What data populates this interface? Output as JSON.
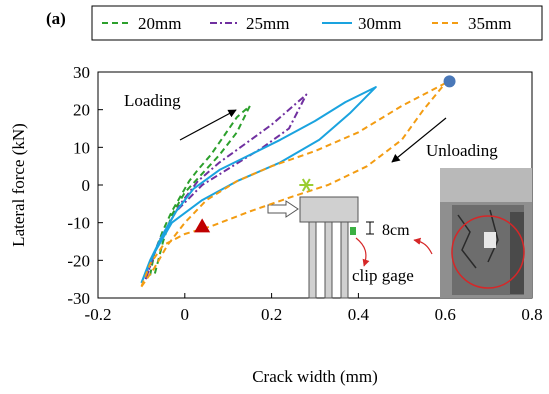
{
  "chart_data": {
    "type": "line",
    "panel_label": "(a)",
    "xlabel": "Crack width (mm)",
    "ylabel": "Lateral force (kN)",
    "xlim": [
      -0.2,
      0.8
    ],
    "ylim": [
      -30,
      30
    ],
    "xticks": [
      -0.2,
      0,
      0.2,
      0.4,
      0.6,
      0.8
    ],
    "xtick_labels": [
      "-0.2",
      "0",
      "0.2",
      "0.4",
      "0.6",
      "0.8"
    ],
    "yticks": [
      -30,
      -20,
      -10,
      0,
      10,
      20,
      30
    ],
    "ytick_labels": [
      "-30",
      "-20",
      "-10",
      "0",
      "10",
      "20",
      "30"
    ],
    "grid": false,
    "legend_position": "top",
    "series": [
      {
        "name": "20mm",
        "color": "#2ca02c",
        "dash": "dashed",
        "x": [
          -0.08,
          -0.07,
          -0.05,
          -0.03,
          -0.01,
          0.01,
          0.03,
          0.06,
          0.09,
          0.12,
          0.15,
          0.12,
          0.08,
          0.04,
          0.0,
          -0.03,
          -0.05,
          -0.07
        ],
        "y": [
          -24,
          -18,
          -12,
          -7,
          -3,
          1,
          4,
          8,
          13,
          18,
          21,
          14,
          8,
          3,
          -2,
          -8,
          -15,
          -24
        ]
      },
      {
        "name": "25mm",
        "color": "#7030a0",
        "dash": "dashdot",
        "x": [
          -0.09,
          -0.07,
          -0.04,
          -0.01,
          0.03,
          0.08,
          0.14,
          0.2,
          0.25,
          0.28,
          0.24,
          0.18,
          0.11,
          0.04,
          -0.02,
          -0.06,
          -0.09
        ],
        "y": [
          -25,
          -18,
          -11,
          -5,
          1,
          6,
          11,
          16,
          21,
          24,
          15,
          10,
          5,
          0,
          -7,
          -15,
          -25
        ]
      },
      {
        "name": "30mm",
        "color": "#1aa3df",
        "dash": "solid",
        "x": [
          -0.1,
          -0.08,
          -0.05,
          -0.02,
          0.02,
          0.08,
          0.15,
          0.22,
          0.3,
          0.37,
          0.44,
          0.38,
          0.31,
          0.22,
          0.12,
          0.04,
          -0.03,
          -0.07,
          -0.1
        ],
        "y": [
          -26,
          -20,
          -13,
          -7,
          -1,
          4,
          8,
          12,
          17,
          22,
          26,
          19,
          12,
          6,
          1,
          -4,
          -10,
          -18,
          -26
        ]
      },
      {
        "name": "35mm",
        "color": "#f39c12",
        "dash": "dashed",
        "x": [
          -0.1,
          -0.07,
          -0.04,
          0.0,
          0.05,
          0.12,
          0.2,
          0.3,
          0.4,
          0.5,
          0.6,
          0.55,
          0.5,
          0.42,
          0.33,
          0.25,
          0.15,
          0.06,
          0.0,
          -0.05,
          -0.08,
          -0.1
        ],
        "y": [
          -27,
          -22,
          -16,
          -10,
          -4,
          1,
          5,
          9,
          14,
          21,
          27,
          20,
          12,
          5,
          0,
          -3,
          -7,
          -11,
          -13,
          -16,
          -21,
          -27
        ]
      }
    ],
    "markers": [
      {
        "shape": "circle",
        "color": "#4a78b8",
        "x": 0.61,
        "y": 27.5
      },
      {
        "shape": "star",
        "color": "#9acd32",
        "x": 0.28,
        "y": 0
      },
      {
        "shape": "triangle",
        "color": "#c00000",
        "x": 0.04,
        "y": -11
      }
    ],
    "annotations": {
      "loading": "Loading",
      "unloading": "Unloading",
      "gauge_length": "8cm",
      "clip_gage": "clip gage"
    }
  }
}
